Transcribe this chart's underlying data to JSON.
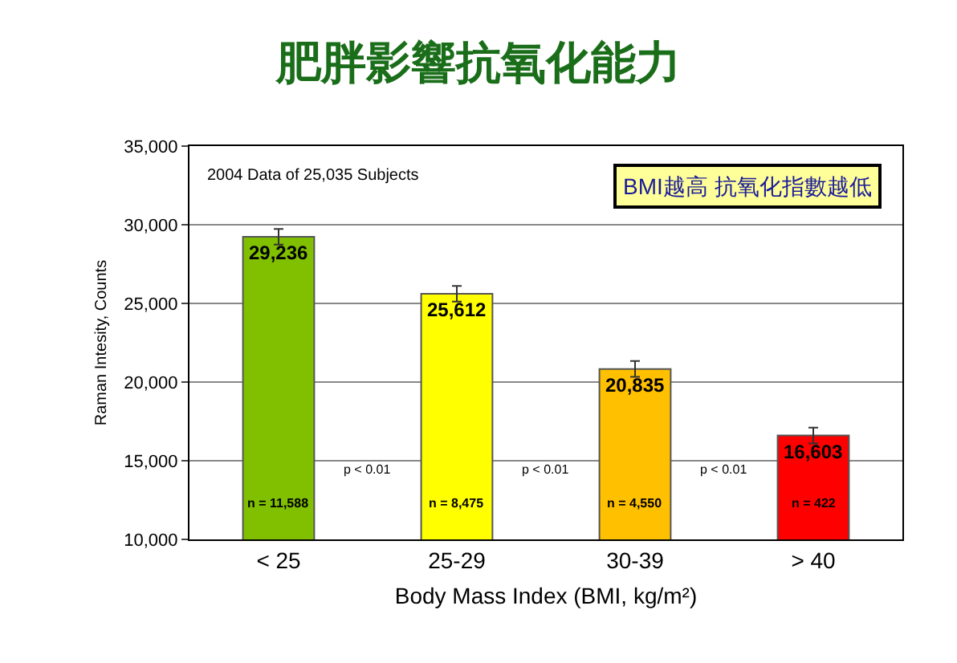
{
  "chart_data": {
    "type": "bar",
    "title": "肥胖影響抗氧化能力",
    "xlabel": "Body Mass Index (BMI, kg/m²)",
    "ylabel": "Raman Intesity, Counts",
    "categories": [
      "< 25",
      "25-29",
      "30-39",
      "> 40"
    ],
    "values": [
      29236,
      25612,
      20835,
      16603
    ],
    "colors": [
      "#80c000",
      "#ffff00",
      "#ffc000",
      "#ff0000"
    ],
    "errors": [
      500,
      500,
      500,
      500
    ],
    "value_labels": [
      "29,236",
      "25,612",
      "20,835",
      "16,603"
    ],
    "ylim": [
      10000,
      35000
    ],
    "yticks": [
      {
        "value": 10000,
        "label": "10,000"
      },
      {
        "value": 15000,
        "label": "15,000"
      },
      {
        "value": 20000,
        "label": "20,000"
      },
      {
        "value": 25000,
        "label": "25,000"
      },
      {
        "value": 30000,
        "label": "30,000"
      },
      {
        "value": 35000,
        "label": "35,000"
      }
    ],
    "grid": "y",
    "annotations": [
      "2004 Data of 25,035 Subjects",
      "BMI越高 抗氧化指數越低",
      "p < 0.01",
      "p < 0.01",
      "p < 0.01",
      "n = 11,588",
      "n = 8,475",
      "n = 4,550",
      "n = 422"
    ]
  }
}
